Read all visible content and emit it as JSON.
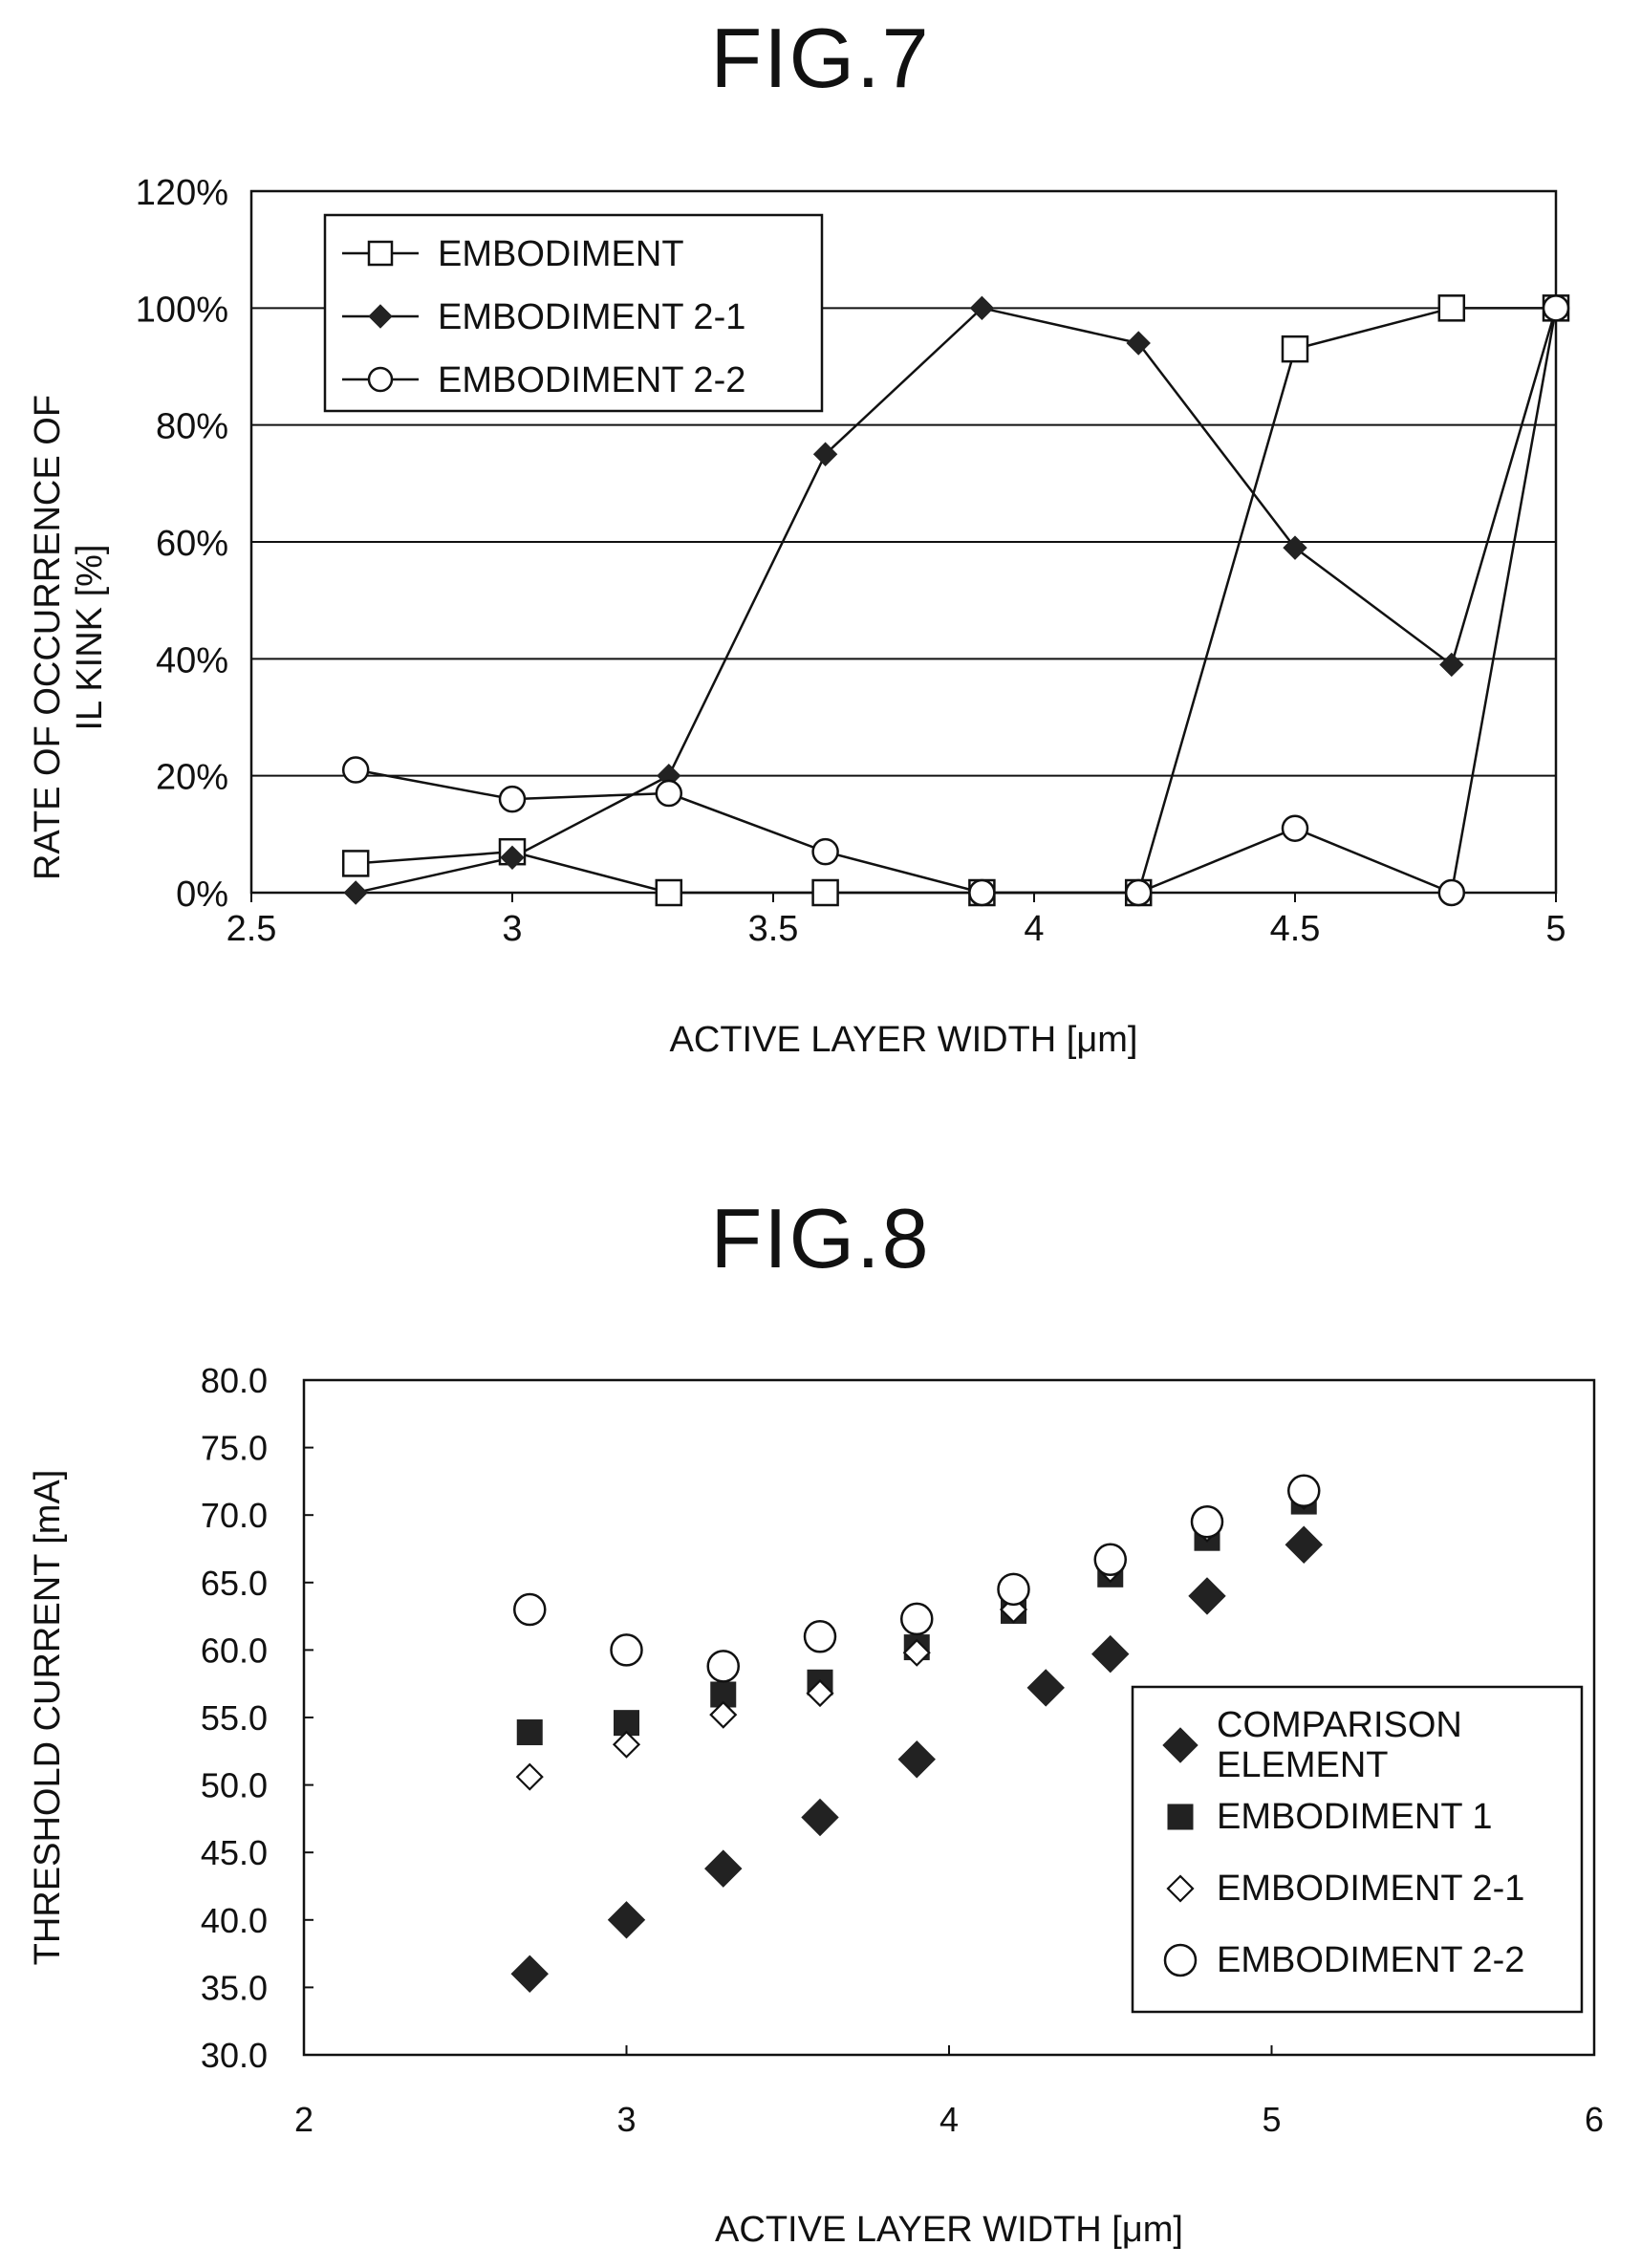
{
  "figures": [
    {
      "label": "FIG.7"
    },
    {
      "label": "FIG.8"
    }
  ],
  "chart_data": [
    {
      "type": "line",
      "title": "FIG.7",
      "xlabel": "ACTIVE LAYER WIDTH [μm]",
      "ylabel_lines": [
        "RATE OF OCCURRENCE OF",
        "IL KINK [%]"
      ],
      "xlim": [
        2.5,
        5
      ],
      "ylim": [
        0,
        120
      ],
      "x_ticks": [
        "2.5",
        "3",
        "3.5",
        "4",
        "4.5",
        "5"
      ],
      "y_ticks": [
        "0%",
        "20%",
        "40%",
        "60%",
        "80%",
        "100%",
        "120%"
      ],
      "grid": "horizontal",
      "legend_position": "top-left",
      "series": [
        {
          "name": "EMBODIMENT",
          "marker": "open-square",
          "x": [
            2.7,
            3.0,
            3.3,
            3.6,
            3.9,
            4.2,
            4.5,
            4.8,
            5.0
          ],
          "y": [
            5,
            7,
            0,
            0,
            0,
            0,
            93,
            100,
            100
          ]
        },
        {
          "name": "EMBODIMENT 2-1",
          "marker": "filled-diamond",
          "x": [
            2.7,
            3.0,
            3.3,
            3.6,
            3.9,
            4.2,
            4.5,
            4.8,
            5.0
          ],
          "y": [
            0,
            6,
            20,
            75,
            100,
            94,
            59,
            39,
            100
          ]
        },
        {
          "name": "EMBODIMENT 2-2",
          "marker": "open-circle",
          "x": [
            2.7,
            3.0,
            3.3,
            3.6,
            3.9,
            4.2,
            4.5,
            4.8,
            5.0
          ],
          "y": [
            21,
            16,
            17,
            7,
            0,
            0,
            11,
            0,
            100
          ]
        }
      ]
    },
    {
      "type": "scatter",
      "title": "FIG.8",
      "xlabel": "ACTIVE LAYER WIDTH [μm]",
      "ylabel": "THRESHOLD CURRENT [mA]",
      "xlim": [
        2,
        6
      ],
      "ylim": [
        30,
        80
      ],
      "x_ticks": [
        "2",
        "3",
        "4",
        "5",
        "6"
      ],
      "y_ticks": [
        "30.0",
        "35.0",
        "40.0",
        "45.0",
        "50.0",
        "55.0",
        "60.0",
        "65.0",
        "70.0",
        "75.0",
        "80.0"
      ],
      "grid": "none",
      "legend_position": "bottom-right",
      "series": [
        {
          "name_lines": [
            "COMPARISON",
            "ELEMENT"
          ],
          "marker": "filled-diamond",
          "x": [
            2.7,
            3.0,
            3.3,
            3.6,
            3.9,
            4.3,
            4.5,
            4.8,
            5.1
          ],
          "y": [
            36.0,
            40.0,
            43.8,
            47.6,
            51.9,
            57.2,
            59.7,
            64.0,
            67.8
          ]
        },
        {
          "name_lines": [
            "EMBODIMENT 1"
          ],
          "marker": "filled-square",
          "x": [
            2.7,
            3.0,
            3.3,
            3.6,
            3.9,
            4.2,
            4.5,
            4.8,
            5.1
          ],
          "y": [
            53.9,
            54.6,
            56.7,
            57.6,
            60.2,
            62.9,
            65.6,
            68.3,
            71.0
          ]
        },
        {
          "name_lines": [
            "EMBODIMENT 2-1"
          ],
          "marker": "open-diamond",
          "x": [
            2.7,
            3.0,
            3.3,
            3.6,
            3.9,
            4.2,
            4.5,
            4.8,
            5.1
          ],
          "y": [
            50.6,
            53.0,
            55.2,
            56.8,
            59.8,
            63.0,
            66.0,
            69.0,
            71.4
          ]
        },
        {
          "name_lines": [
            "EMBODIMENT 2-2"
          ],
          "marker": "open-circle",
          "x": [
            2.7,
            3.0,
            3.3,
            3.6,
            3.9,
            4.2,
            4.5,
            4.8,
            5.1
          ],
          "y": [
            63.0,
            60.0,
            58.8,
            61.0,
            62.3,
            64.5,
            66.7,
            69.5,
            71.8
          ]
        }
      ]
    }
  ]
}
